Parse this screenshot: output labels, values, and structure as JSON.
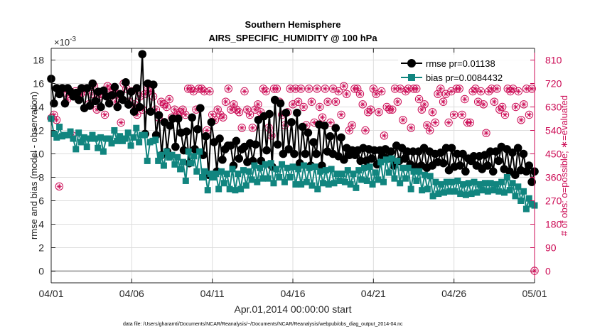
{
  "chart_data": {
    "type": "line",
    "title": [
      "Southern Hemisphere",
      "AIRS_SPECIFIC_HUMIDITY @ 100 hPa"
    ],
    "xlabel": "Apr.01,2014 00:00:00 start",
    "ylabel_left": "rmse and bias (model - observation)",
    "ylabel_right": "# of obs: o=possible; ∗=evaluated",
    "exponent_label": "×10",
    "exponent_power": "-3",
    "footnote": "data file: /Users/gharamti/Documents/NCAR/Reanalysis/~/Documents/NCAR/Reanalysis/webpub/obs_diag_output_2014-04.nc",
    "x_range": [
      0,
      30
    ],
    "x_ticks": [
      0,
      5,
      10,
      15,
      20,
      25,
      30
    ],
    "x_tick_labels": [
      "04/01",
      "04/06",
      "04/11",
      "04/16",
      "04/21",
      "04/26",
      "05/01"
    ],
    "ylim_left": [
      -1,
      19
    ],
    "yticks_left": [
      0,
      2,
      4,
      6,
      8,
      10,
      12,
      14,
      16,
      18
    ],
    "ylim_right": [
      -45,
      855
    ],
    "yticks_right": [
      0,
      90,
      180,
      270,
      360,
      450,
      540,
      630,
      720,
      810
    ],
    "legend_placement": "top-right",
    "grid": true,
    "colors": {
      "rmse": "#000000",
      "bias": "#11857f",
      "obs": "#cc0b55",
      "axis": "#262626",
      "grid": "#dddddd",
      "zero_line": "#aaaaaa"
    },
    "series": [
      {
        "name": "rmse pr=0.01138",
        "key": "rmse",
        "marker": "circle",
        "y": [
          16.4,
          14.3,
          15.6,
          15.1,
          15.6,
          14.3,
          15.6,
          15.3,
          14.9,
          15.2,
          14.6,
          15.6,
          13.9,
          15.6,
          14.1,
          16.0,
          14.5,
          15.3,
          14.0,
          15.4,
          14.9,
          14.3,
          15.0,
          15.7,
          14.0,
          15.1,
          14.6,
          16.1,
          14.2,
          15.3,
          13.6,
          15.6,
          14.0,
          18.5,
          11.7,
          16.0,
          13.6,
          15.9,
          11.6,
          13.3,
          9.9,
          12.7,
          10.2,
          12.4,
          13.0,
          10.6,
          13.0,
          11.8,
          10.3,
          11.9,
          9.2,
          13.1,
          10.4,
          12.1,
          13.9,
          9.9,
          11.5,
          8.2,
          12.7,
          11.0,
          8.5,
          11.3,
          9.5,
          10.4,
          10.7,
          10.7,
          9.0,
          11.1,
          9.6,
          10.4,
          10.6,
          9.3,
          10.9,
          9.4,
          10.8,
          12.9,
          9.4,
          13.2,
          10.3,
          13.4,
          8.9,
          14.6,
          10.8,
          14.3,
          10.0,
          13.5,
          10.4,
          12.7,
          10.0,
          13.5,
          9.2,
          12.3,
          10.0,
          11.8,
          9.0,
          11.0,
          10.0,
          12.5,
          9.0,
          12.4,
          10.2,
          11.5,
          10.0,
          12.2,
          9.8,
          11.4,
          9.5,
          10.5,
          9.9,
          10.3,
          9.9,
          10.3,
          9.4,
          10.5,
          9.4,
          10.4,
          9.6,
          10.3,
          9.1,
          10.3,
          9.8,
          10.4,
          9.6,
          10.2,
          9.0,
          10.7,
          9.4,
          10.5,
          9.6,
          10.2,
          9.1,
          10.2,
          8.9,
          10.2,
          9.0,
          10.5,
          8.8,
          10.2,
          9.0,
          10.0,
          9.3,
          10.1,
          9.2,
          10.5,
          8.6,
          10.5,
          8.9,
          10.0,
          9.0,
          10.0,
          8.5,
          9.6,
          9.4,
          9.8,
          9.0,
          9.8,
          8.7,
          9.9,
          9.0,
          10.2,
          8.5,
          10.2,
          9.4,
          10.6,
          8.7,
          10.4,
          8.5,
          10.1,
          8.2,
          10.5,
          8.6,
          10.0,
          8.5,
          9.0,
          7.6,
          8.5
        ]
      },
      {
        "name": "bias pr=0.0084432",
        "key": "bias",
        "marker": "square",
        "y": [
          13.0,
          11.7,
          11.4,
          12.3,
          11.5,
          11.6,
          11.6,
          11.9,
          11.3,
          10.4,
          11.8,
          11.0,
          11.4,
          10.6,
          11.3,
          11.6,
          11.3,
          10.5,
          11.4,
          10.2,
          11.3,
          11.3,
          10.9,
          12.0,
          11.1,
          11.5,
          11.1,
          11.3,
          11.8,
          10.7,
          11.4,
          12.2,
          11.0,
          11.6,
          11.6,
          9.4,
          11.0,
          11.1,
          11.2,
          9.4,
          9.9,
          9.0,
          10.2,
          9.7,
          9.9,
          9.1,
          9.7,
          8.7,
          9.3,
          7.7,
          10.2,
          9.2,
          9.8,
          8.5,
          10.2,
          8.0,
          8.5,
          6.9,
          8.3,
          8.0,
          8.3,
          7.0,
          8.5,
          7.5,
          8.3,
          7.0,
          8.7,
          6.9,
          8.3,
          7.0,
          8.6,
          7.3,
          8.5,
          7.8,
          9.0,
          7.6,
          8.8,
          7.9,
          9.1,
          7.9,
          9.2,
          7.5,
          8.7,
          8.0,
          9.1,
          7.6,
          8.8,
          8.0,
          8.9,
          7.4,
          8.7,
          7.4,
          9.0,
          7.6,
          8.8,
          7.3,
          8.9,
          7.0,
          8.5,
          7.5,
          8.6,
          7.4,
          8.7,
          7.5,
          8.3,
          7.7,
          8.3,
          7.6,
          8.6,
          7.4,
          8.3,
          7.1,
          8.6,
          7.8,
          8.8,
          7.7,
          8.9,
          7.4,
          8.4,
          7.8,
          9.3,
          7.6,
          9.5,
          8.4,
          9.6,
          7.9,
          9.4,
          7.5,
          8.8,
          7.9,
          8.8,
          7.0,
          8.5,
          7.7,
          8.5,
          6.9,
          8.2,
          7.0,
          8.1,
          6.4,
          7.6,
          6.6,
          7.4,
          6.7,
          7.6,
          6.8,
          7.6,
          6.8,
          7.7,
          6.6,
          7.4,
          6.5,
          7.5,
          6.6,
          7.6,
          6.7,
          7.4,
          6.9,
          7.5,
          6.8,
          7.5,
          6.9,
          7.4,
          6.8,
          7.6,
          6.7,
          8.0,
          6.9,
          7.5,
          6.4,
          7.2,
          6.0,
          6.8,
          5.3,
          6.2,
          5.7,
          5.6
        ]
      },
      {
        "name": "# of obs possible",
        "key": "possible",
        "marker": "circle-open",
        "y": [
          587,
          600,
          580,
          325,
          700,
          690,
          660,
          680,
          520,
          690,
          670,
          680,
          700,
          690,
          640,
          680,
          710,
          620,
          670,
          680,
          600,
          710,
          700,
          690,
          650,
          680,
          570,
          720,
          700,
          650,
          690,
          640,
          600,
          670,
          620,
          680,
          700,
          690,
          670,
          620,
          590,
          650,
          640,
          630,
          660,
          590,
          620,
          600,
          610,
          620,
          600,
          700,
          700,
          690,
          620,
          700,
          700,
          690,
          540,
          690,
          600,
          580,
          620,
          600,
          590,
          650,
          700,
          620,
          640,
          620,
          610,
          550,
          690,
          620,
          600,
          550,
          620,
          640,
          610,
          700,
          690,
          550,
          520,
          700,
          700,
          650,
          600,
          560,
          610,
          700,
          640,
          700,
          650,
          700,
          630,
          560,
          700,
          650,
          570,
          700,
          630,
          590,
          700,
          650,
          570,
          700,
          650,
          690,
          600,
          710,
          680,
          540,
          560,
          700,
          700,
          680,
          640,
          540,
          610,
          620,
          700,
          680,
          610,
          690,
          520,
          630,
          620,
          620,
          700,
          650,
          700,
          580,
          690,
          700,
          550,
          700,
          700,
          660,
          620,
          640,
          560,
          540,
          610,
          570,
          680,
          700,
          650,
          680,
          570,
          690,
          600,
          700,
          700,
          600,
          660,
          570,
          570,
          690,
          700,
          650,
          690,
          640,
          530,
          690,
          700,
          650,
          700,
          620,
          630,
          600,
          700,
          690,
          700,
          630,
          690,
          580,
          640,
          700,
          600,
          700,
          1
        ]
      },
      {
        "name": "# of obs evaluated",
        "key": "evaluated",
        "marker": "asterisk",
        "y": [
          587,
          600,
          580,
          325,
          700,
          690,
          660,
          680,
          520,
          690,
          670,
          680,
          700,
          690,
          640,
          680,
          710,
          620,
          670,
          680,
          600,
          710,
          700,
          690,
          650,
          680,
          570,
          720,
          700,
          650,
          690,
          640,
          600,
          670,
          620,
          680,
          700,
          690,
          670,
          620,
          590,
          650,
          640,
          630,
          660,
          590,
          620,
          600,
          610,
          620,
          600,
          700,
          700,
          690,
          620,
          700,
          700,
          690,
          540,
          690,
          600,
          580,
          620,
          600,
          590,
          650,
          700,
          620,
          640,
          620,
          610,
          550,
          690,
          620,
          600,
          550,
          620,
          640,
          610,
          700,
          690,
          550,
          520,
          700,
          700,
          650,
          600,
          560,
          610,
          700,
          640,
          700,
          650,
          700,
          630,
          560,
          700,
          650,
          570,
          700,
          630,
          590,
          700,
          650,
          570,
          700,
          650,
          690,
          600,
          710,
          680,
          540,
          560,
          700,
          700,
          680,
          640,
          540,
          610,
          620,
          700,
          680,
          610,
          690,
          520,
          630,
          620,
          620,
          700,
          650,
          700,
          580,
          690,
          700,
          550,
          700,
          700,
          660,
          620,
          640,
          560,
          540,
          610,
          570,
          680,
          700,
          650,
          680,
          570,
          690,
          600,
          700,
          700,
          600,
          660,
          570,
          570,
          690,
          700,
          650,
          690,
          640,
          530,
          690,
          700,
          650,
          700,
          620,
          630,
          600,
          700,
          690,
          700,
          630,
          690,
          580,
          640,
          700,
          600,
          700,
          1
        ]
      }
    ]
  }
}
